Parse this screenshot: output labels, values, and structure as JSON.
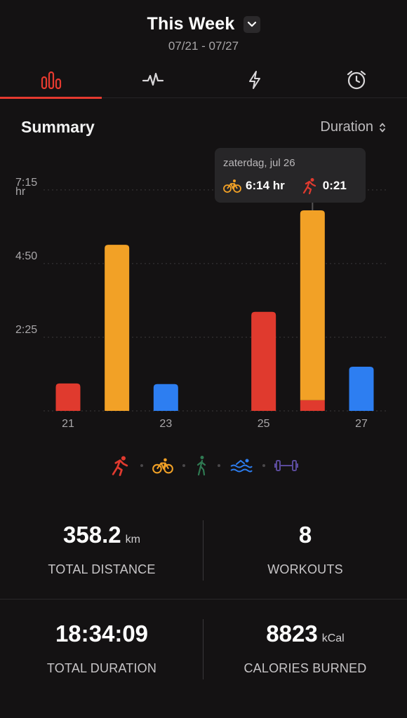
{
  "header": {
    "title": "This Week",
    "date_range": "07/21 - 07/27"
  },
  "tabs": [
    {
      "icon": "bar-chart-icon",
      "active": true
    },
    {
      "icon": "heart-rate-icon",
      "active": false
    },
    {
      "icon": "lightning-icon",
      "active": false
    },
    {
      "icon": "alarm-clock-icon",
      "active": false
    }
  ],
  "summary": {
    "title": "Summary",
    "metric": "Duration"
  },
  "colors": {
    "run": "#e03a2e",
    "bike": "#f2a126",
    "walk": "#2f7a52",
    "swim": "#2d7ef1",
    "strength": "#5a4a9a",
    "accent": "#e53a2f"
  },
  "tooltip": {
    "date": "zaterdag, jul 26",
    "bike_value": "6:14 hr",
    "run_value": "0:21"
  },
  "chart_data": {
    "type": "bar",
    "stacked": true,
    "ylabel": "hr",
    "ylim": [
      0,
      7.8
    ],
    "yticks": [
      {
        "value": 2.4167,
        "label": "2:25"
      },
      {
        "value": 4.8333,
        "label": "4:50"
      },
      {
        "value": 7.25,
        "label": "7:15"
      }
    ],
    "categories": [
      "21",
      "22",
      "23",
      "24",
      "25",
      "26",
      "27"
    ],
    "xtick_labels": [
      "21",
      "",
      "23",
      "",
      "25",
      "",
      "27"
    ],
    "series": [
      {
        "type": "run",
        "values": [
          0.9,
          0,
          0,
          0,
          3.25,
          0.35,
          0
        ]
      },
      {
        "type": "bike",
        "values": [
          0,
          5.45,
          0,
          0,
          0,
          6.23,
          0
        ]
      },
      {
        "type": "swim",
        "values": [
          0,
          0,
          0.88,
          0,
          0,
          0,
          1.45
        ]
      }
    ],
    "grid": true
  },
  "legend": [
    "run-icon",
    "bike-icon",
    "walk-icon",
    "swim-icon",
    "strength-icon"
  ],
  "stats": {
    "distance": {
      "value": "358.2",
      "unit": "km",
      "label": "TOTAL DISTANCE"
    },
    "workouts": {
      "value": "8",
      "label": "WORKOUTS"
    },
    "duration": {
      "value": "18:34:09",
      "label": "TOTAL DURATION"
    },
    "calories": {
      "value": "8823",
      "unit": "kCal",
      "label": "CALORIES BURNED"
    }
  }
}
